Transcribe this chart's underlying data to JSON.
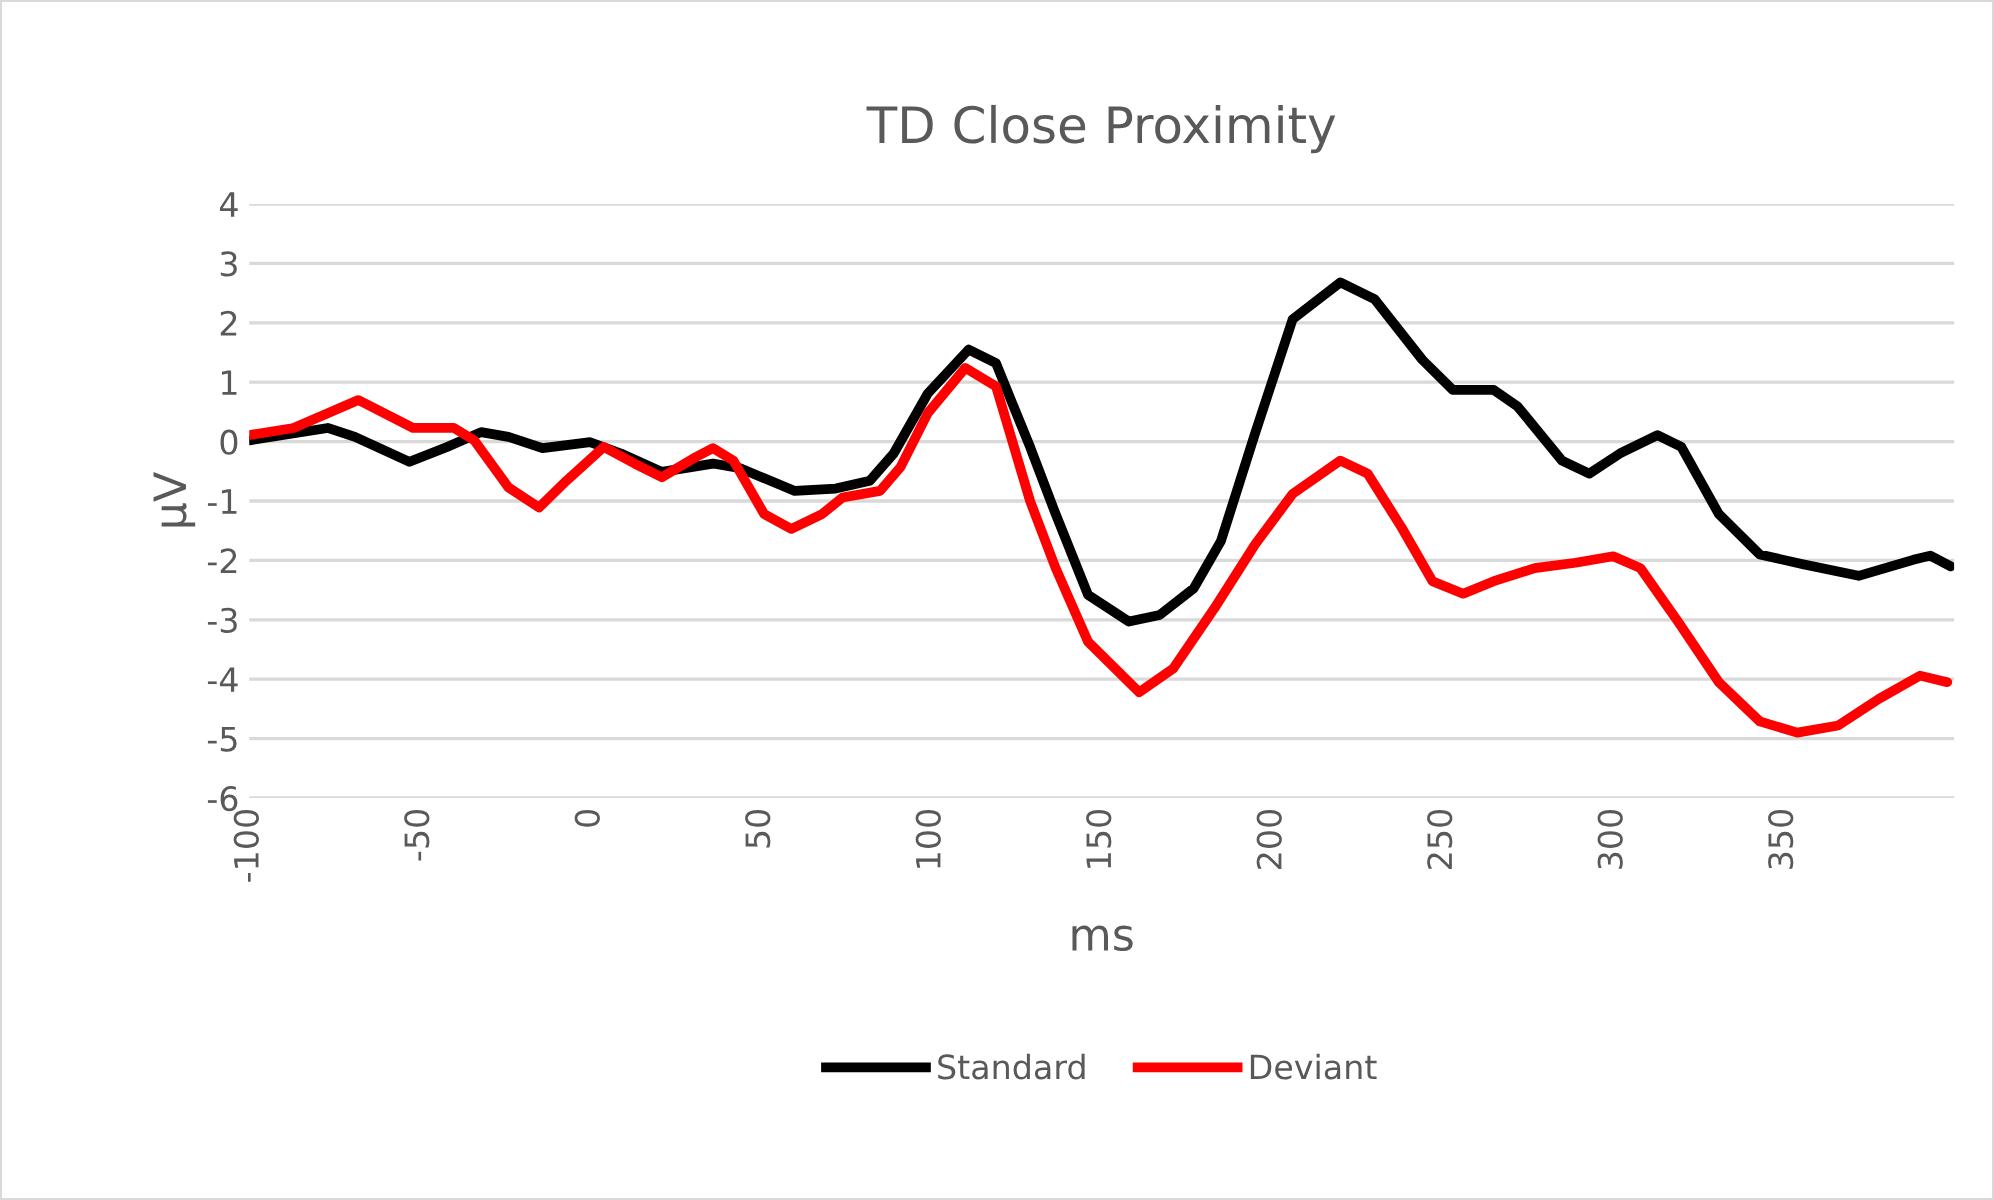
{
  "chart_data": {
    "type": "line",
    "title": "TD Close Proximity",
    "xlabel": "ms",
    "ylabel": "µV",
    "xlim": [
      -100,
      400
    ],
    "xticks": [
      -100,
      -50,
      0,
      50,
      100,
      150,
      200,
      250,
      300,
      350
    ],
    "ylim": [
      -6,
      4
    ],
    "yticks": [
      -6,
      -5,
      -4,
      -3,
      -2,
      -1,
      0,
      1,
      2,
      3,
      4
    ],
    "grid": "y",
    "legend": "bottom",
    "line_style": "solid",
    "marker": "none",
    "series": [
      {
        "name": "Standard",
        "color": "#000000",
        "x": [
          -100,
          -77,
          -69,
          -53,
          -42,
          -32,
          -24,
          -14,
          0,
          9,
          21,
          36,
          44,
          60,
          72,
          82,
          89,
          99,
          111,
          119,
          129,
          136.5,
          146,
          158,
          167,
          177,
          185,
          195,
          206,
          220,
          230,
          244,
          253,
          265,
          272,
          285,
          293,
          302,
          313,
          320,
          331,
          343,
          356,
          372,
          388,
          393,
          399
        ],
        "values": [
          0.02,
          0.23,
          0.08,
          -0.34,
          -0.09,
          0.16,
          0.08,
          -0.11,
          -0.01,
          -0.2,
          -0.51,
          -0.37,
          -0.45,
          -0.83,
          -0.79,
          -0.66,
          -0.2,
          0.81,
          1.55,
          1.32,
          -0.09,
          -1.22,
          -2.58,
          -3.03,
          -2.92,
          -2.47,
          -1.67,
          0.14,
          2.06,
          2.68,
          2.4,
          1.38,
          0.87,
          0.87,
          0.59,
          -0.32,
          -0.54,
          -0.2,
          0.11,
          -0.09,
          -1.22,
          -1.9,
          -2.07,
          -2.26,
          -1.99,
          -1.92,
          -2.1
        ]
      },
      {
        "name": "Deviant",
        "color": "#ff0000",
        "x": [
          -100,
          -87,
          -68,
          -52,
          -40,
          -34,
          -24,
          -15,
          -7,
          4,
          13,
          21,
          31,
          36,
          42,
          51,
          59,
          68,
          74,
          85,
          91,
          99,
          110,
          119,
          129,
          136.5,
          146,
          161,
          171,
          183,
          195,
          206,
          220,
          228,
          238,
          247,
          256,
          265,
          277,
          289,
          300,
          308,
          319,
          331,
          343,
          354,
          366,
          378,
          390,
          398
        ],
        "values": [
          0.11,
          0.23,
          0.7,
          0.23,
          0.23,
          0.02,
          -0.77,
          -1.11,
          -0.66,
          -0.09,
          -0.37,
          -0.6,
          -0.26,
          -0.11,
          -0.32,
          -1.22,
          -1.47,
          -1.22,
          -0.94,
          -0.83,
          -0.43,
          0.48,
          1.24,
          0.93,
          -1.0,
          -2.13,
          -3.37,
          -4.22,
          -3.82,
          -2.81,
          -1.73,
          -0.88,
          -0.32,
          -0.54,
          -1.45,
          -2.35,
          -2.56,
          -2.35,
          -2.13,
          -2.04,
          -1.93,
          -2.13,
          -3.03,
          -4.05,
          -4.71,
          -4.9,
          -4.78,
          -4.33,
          -3.94,
          -4.05
        ]
      }
    ]
  }
}
